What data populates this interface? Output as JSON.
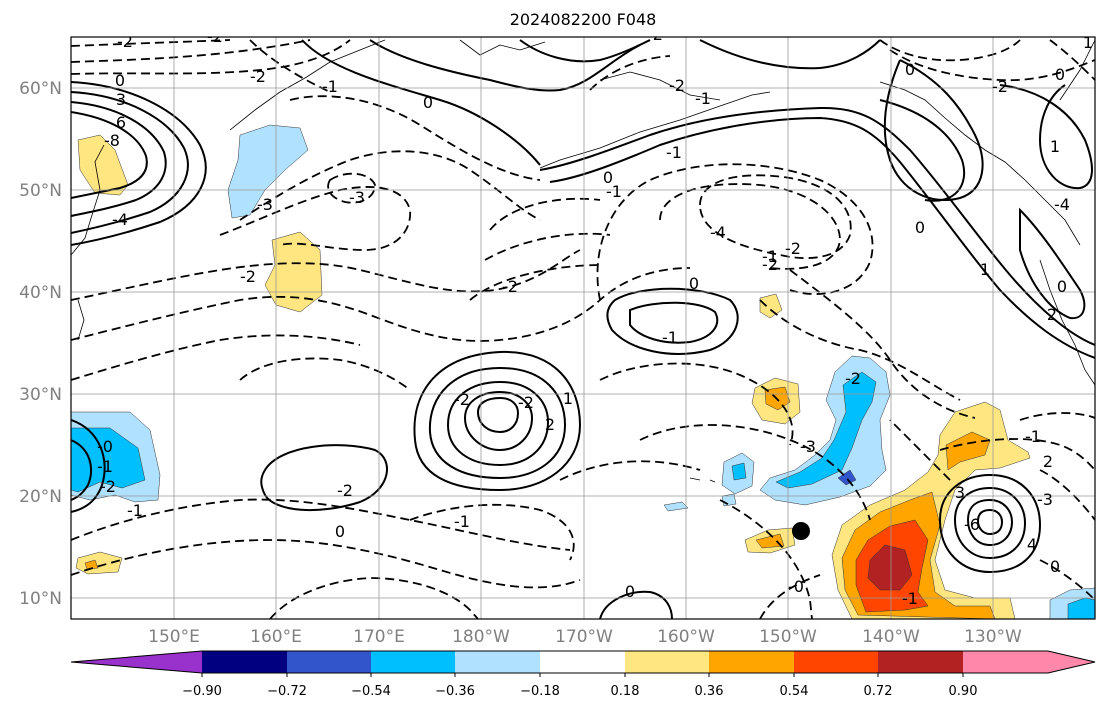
{
  "title": "2024082200 F048",
  "lat_labels": [
    "60°N",
    "50°N",
    "40°N",
    "30°N",
    "20°N",
    "10°N"
  ],
  "lon_labels": [
    "150°E",
    "160°E",
    "170°E",
    "180°W",
    "170°W",
    "160°W",
    "150°W",
    "140°W",
    "130°W"
  ],
  "colorbar": {
    "colors": [
      "#9932cc",
      "#000080",
      "#3355cc",
      "#00bfff",
      "#b0e2ff",
      "#ffffff",
      "#ffe680",
      "#ffa500",
      "#ff4500",
      "#b22222",
      "#ff88aa"
    ],
    "tick_labels": [
      "−0.90",
      "−0.72",
      "−0.54",
      "−0.36",
      "−0.18",
      "0.18",
      "0.36",
      "0.54",
      "0.72",
      "0.90"
    ]
  },
  "contour_labels": [
    "-2",
    "-2",
    "-2",
    "-1",
    "0",
    "3",
    "6",
    "-8",
    "-4",
    "-3",
    "0",
    "-3",
    "-2",
    "-2",
    "0",
    "-1",
    "-2",
    "-2",
    "1",
    "2",
    "-2",
    "-1",
    "0",
    "-0",
    "-1",
    "-1",
    "-2",
    "0",
    "-0",
    "-1",
    "-2",
    "-3",
    "-4",
    "-2",
    "0",
    "-2",
    "-1",
    "0",
    "-1",
    "-2",
    "0",
    "1",
    "-4",
    "1",
    "0",
    "2",
    "3",
    "-6",
    "-3",
    "4",
    "0",
    "2",
    "-1",
    "-1",
    "-2",
    "0",
    "1",
    "-1",
    "-2"
  ]
}
